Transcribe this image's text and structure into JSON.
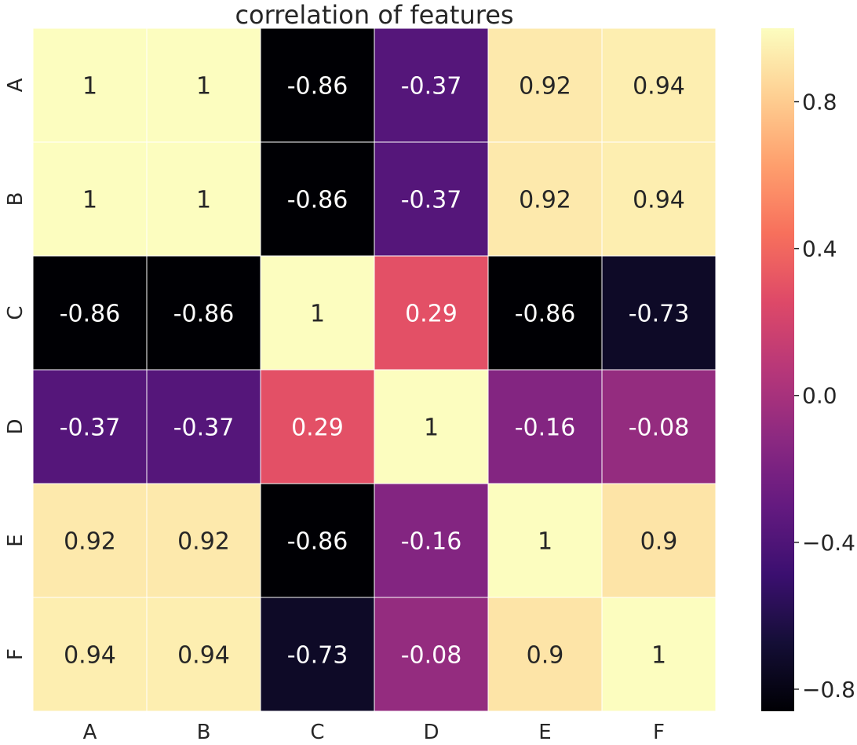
{
  "chart_data": {
    "type": "heatmap",
    "title": "correlation of features",
    "xlabel": "",
    "ylabel": "",
    "x_categories": [
      "A",
      "B",
      "C",
      "D",
      "E",
      "F"
    ],
    "y_categories": [
      "A",
      "B",
      "C",
      "D",
      "E",
      "F"
    ],
    "values": [
      [
        1,
        1,
        -0.86,
        -0.37,
        0.92,
        0.94
      ],
      [
        1,
        1,
        -0.86,
        -0.37,
        0.92,
        0.94
      ],
      [
        -0.86,
        -0.86,
        1,
        0.29,
        -0.86,
        -0.73
      ],
      [
        -0.37,
        -0.37,
        0.29,
        1,
        -0.16,
        -0.08
      ],
      [
        0.92,
        0.92,
        -0.86,
        -0.16,
        1,
        0.9
      ],
      [
        0.94,
        0.94,
        -0.73,
        -0.08,
        0.9,
        1
      ]
    ],
    "annotations": [
      [
        "1",
        "1",
        "-0.86",
        "-0.37",
        "0.92",
        "0.94"
      ],
      [
        "1",
        "1",
        "-0.86",
        "-0.37",
        "0.92",
        "0.94"
      ],
      [
        "-0.86",
        "-0.86",
        "1",
        "0.29",
        "-0.86",
        "-0.73"
      ],
      [
        "-0.37",
        "-0.37",
        "0.29",
        "1",
        "-0.16",
        "-0.08"
      ],
      [
        "0.92",
        "0.92",
        "-0.86",
        "-0.16",
        "1",
        "0.9"
      ],
      [
        "0.94",
        "0.94",
        "-0.73",
        "-0.08",
        "0.9",
        "1"
      ]
    ],
    "colormap": "magma",
    "color_range": [
      -0.86,
      1
    ],
    "colorbar": {
      "ticks": [
        0.8,
        0.4,
        0.0,
        -0.4,
        -0.8
      ],
      "tick_labels": [
        "0.8",
        "0.4",
        "0.0",
        "−0.4",
        "−0.8"
      ]
    },
    "grid": false,
    "cell_border_color": "#ffffff"
  }
}
